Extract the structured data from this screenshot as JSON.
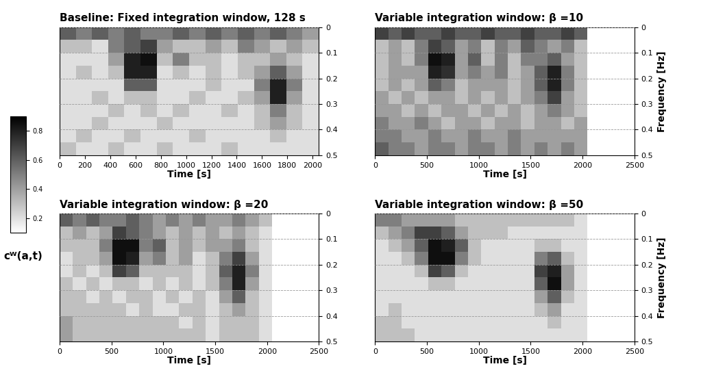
{
  "chart_data": [
    {
      "type": "heatmap",
      "title": "Baseline: Fixed integration window, 128 s",
      "x_label": "Time [s]",
      "xlim": [
        0,
        2050
      ],
      "xticks": [
        0,
        200,
        400,
        600,
        800,
        1000,
        1200,
        1400,
        1600,
        1800,
        2000
      ],
      "ylim": [
        0.5,
        0
      ],
      "yticks": [
        0,
        0.1,
        0.2,
        0.3,
        0.4,
        0.5
      ],
      "grid": true,
      "time_edges": [
        0,
        128,
        256,
        384,
        512,
        640,
        768,
        896,
        1024,
        1152,
        1280,
        1408,
        1536,
        1664,
        1792,
        1920,
        2048
      ],
      "frequency_edges": [
        0,
        0.05,
        0.1,
        0.15,
        0.2,
        0.25,
        0.3,
        0.35,
        0.4,
        0.45,
        0.5
      ],
      "cells": [
        [
          0.6,
          0.5,
          0.6,
          0.5,
          0.6,
          0.5,
          0.5,
          0.6,
          0.5,
          0.6,
          0.5,
          0.6,
          0.5,
          0.6,
          0.5,
          0.4
        ],
        [
          0.3,
          0.3,
          0.2,
          0.5,
          0.6,
          0.7,
          0.4,
          0.3,
          0.3,
          0.4,
          0.3,
          0.5,
          0.4,
          0.3,
          0.4,
          0.3
        ],
        [
          0.2,
          0.2,
          0.2,
          0.4,
          0.8,
          0.85,
          0.3,
          0.5,
          0.3,
          0.3,
          0.2,
          0.3,
          0.3,
          0.4,
          0.3,
          0.2
        ],
        [
          0.2,
          0.3,
          0.2,
          0.3,
          0.8,
          0.8,
          0.2,
          0.3,
          0.2,
          0.3,
          0.2,
          0.3,
          0.4,
          0.6,
          0.4,
          0.2
        ],
        [
          0.2,
          0.2,
          0.2,
          0.2,
          0.6,
          0.6,
          0.2,
          0.2,
          0.2,
          0.3,
          0.2,
          0.2,
          0.5,
          0.8,
          0.5,
          0.2
        ],
        [
          0.2,
          0.2,
          0.3,
          0.2,
          0.3,
          0.3,
          0.2,
          0.2,
          0.3,
          0.2,
          0.2,
          0.3,
          0.4,
          0.8,
          0.4,
          0.2
        ],
        [
          0.2,
          0.2,
          0.2,
          0.3,
          0.2,
          0.3,
          0.2,
          0.3,
          0.2,
          0.2,
          0.3,
          0.2,
          0.3,
          0.5,
          0.3,
          0.2
        ],
        [
          0.2,
          0.2,
          0.3,
          0.2,
          0.2,
          0.2,
          0.3,
          0.2,
          0.2,
          0.2,
          0.2,
          0.2,
          0.3,
          0.4,
          0.3,
          0.2
        ],
        [
          0.2,
          0.3,
          0.2,
          0.2,
          0.3,
          0.2,
          0.2,
          0.2,
          0.3,
          0.2,
          0.2,
          0.2,
          0.2,
          0.3,
          0.2,
          0.2
        ],
        [
          0.3,
          0.2,
          0.2,
          0.3,
          0.2,
          0.2,
          0.3,
          0.2,
          0.2,
          0.2,
          0.3,
          0.2,
          0.2,
          0.2,
          0.2,
          0.2
        ]
      ]
    },
    {
      "type": "heatmap",
      "title": "Variable integration window: β =10",
      "x_label": "Time [s]",
      "y_label": "Frequency [Hz]",
      "xlim": [
        0,
        2500
      ],
      "xticks": [
        0,
        500,
        1000,
        1500,
        2000,
        2500
      ],
      "ylim": [
        0.5,
        0
      ],
      "yticks": [
        0,
        0.1,
        0.2,
        0.3,
        0.4,
        0.5
      ],
      "grid": true,
      "time_edges": [
        0,
        128,
        256,
        384,
        512,
        640,
        768,
        896,
        1024,
        1152,
        1280,
        1408,
        1536,
        1664,
        1792,
        1920,
        2048
      ],
      "frequency_edges": [
        0,
        0.05,
        0.1,
        0.15,
        0.2,
        0.25,
        0.3,
        0.35,
        0.4,
        0.45,
        0.5
      ],
      "cells": [
        [
          0.7,
          0.6,
          0.7,
          0.6,
          0.6,
          0.7,
          0.6,
          0.6,
          0.7,
          0.6,
          0.6,
          0.7,
          0.6,
          0.6,
          0.7,
          0.6
        ],
        [
          0.3,
          0.4,
          0.3,
          0.5,
          0.7,
          0.6,
          0.4,
          0.5,
          0.3,
          0.5,
          0.4,
          0.6,
          0.5,
          0.4,
          0.5,
          0.3
        ],
        [
          0.3,
          0.4,
          0.3,
          0.5,
          0.85,
          0.8,
          0.4,
          0.6,
          0.3,
          0.5,
          0.3,
          0.5,
          0.5,
          0.6,
          0.4,
          0.3
        ],
        [
          0.3,
          0.4,
          0.4,
          0.4,
          0.8,
          0.75,
          0.4,
          0.5,
          0.4,
          0.5,
          0.3,
          0.4,
          0.6,
          0.8,
          0.5,
          0.3
        ],
        [
          0.3,
          0.4,
          0.3,
          0.4,
          0.6,
          0.5,
          0.3,
          0.4,
          0.4,
          0.4,
          0.3,
          0.4,
          0.6,
          0.8,
          0.5,
          0.3
        ],
        [
          0.4,
          0.3,
          0.4,
          0.3,
          0.4,
          0.4,
          0.3,
          0.4,
          0.3,
          0.4,
          0.3,
          0.4,
          0.5,
          0.7,
          0.4,
          0.3
        ],
        [
          0.4,
          0.4,
          0.3,
          0.4,
          0.3,
          0.4,
          0.4,
          0.3,
          0.4,
          0.3,
          0.4,
          0.3,
          0.4,
          0.5,
          0.4,
          0.3
        ],
        [
          0.5,
          0.4,
          0.4,
          0.5,
          0.4,
          0.3,
          0.4,
          0.4,
          0.3,
          0.4,
          0.4,
          0.3,
          0.4,
          0.4,
          0.3,
          0.4
        ],
        [
          0.5,
          0.5,
          0.4,
          0.4,
          0.5,
          0.4,
          0.4,
          0.5,
          0.4,
          0.4,
          0.5,
          0.4,
          0.4,
          0.4,
          0.4,
          0.4
        ],
        [
          0.6,
          0.5,
          0.5,
          0.4,
          0.5,
          0.5,
          0.4,
          0.5,
          0.5,
          0.4,
          0.5,
          0.4,
          0.5,
          0.4,
          0.5,
          0.4
        ]
      ]
    },
    {
      "type": "heatmap",
      "title": "Variable integration window: β =20",
      "x_label": "Time [s]",
      "xlim": [
        0,
        2500
      ],
      "xticks": [
        0,
        500,
        1000,
        1500,
        2000,
        2500
      ],
      "ylim": [
        0.5,
        0
      ],
      "yticks": [
        0,
        0.1,
        0.2,
        0.3,
        0.4,
        0.5
      ],
      "grid": true,
      "time_edges": [
        0,
        128,
        256,
        384,
        512,
        640,
        768,
        896,
        1024,
        1152,
        1280,
        1408,
        1536,
        1664,
        1792,
        1920,
        2048
      ],
      "frequency_edges": [
        0,
        0.05,
        0.1,
        0.15,
        0.2,
        0.25,
        0.3,
        0.35,
        0.4,
        0.45,
        0.5
      ],
      "cells": [
        [
          0.6,
          0.5,
          0.6,
          0.5,
          0.5,
          0.6,
          0.5,
          0.4,
          0.5,
          0.4,
          0.5,
          0.4,
          0.4,
          0.5,
          0.4,
          0.3
        ],
        [
          0.3,
          0.4,
          0.3,
          0.4,
          0.7,
          0.6,
          0.5,
          0.4,
          0.3,
          0.4,
          0.3,
          0.4,
          0.3,
          0.4,
          0.3,
          0.2
        ],
        [
          0.3,
          0.3,
          0.3,
          0.5,
          0.85,
          0.85,
          0.5,
          0.6,
          0.3,
          0.4,
          0.3,
          0.4,
          0.4,
          0.5,
          0.3,
          0.2
        ],
        [
          0.2,
          0.3,
          0.3,
          0.4,
          0.85,
          0.8,
          0.4,
          0.5,
          0.3,
          0.4,
          0.2,
          0.3,
          0.5,
          0.7,
          0.4,
          0.2
        ],
        [
          0.2,
          0.3,
          0.2,
          0.3,
          0.7,
          0.6,
          0.3,
          0.3,
          0.3,
          0.3,
          0.2,
          0.3,
          0.6,
          0.8,
          0.5,
          0.2
        ],
        [
          0.3,
          0.2,
          0.3,
          0.2,
          0.3,
          0.3,
          0.2,
          0.3,
          0.2,
          0.3,
          0.2,
          0.3,
          0.5,
          0.8,
          0.4,
          0.2
        ],
        [
          0.3,
          0.3,
          0.2,
          0.3,
          0.2,
          0.3,
          0.3,
          0.2,
          0.3,
          0.2,
          0.3,
          0.2,
          0.4,
          0.6,
          0.3,
          0.2
        ],
        [
          0.3,
          0.3,
          0.3,
          0.3,
          0.3,
          0.2,
          0.3,
          0.2,
          0.2,
          0.3,
          0.3,
          0.2,
          0.3,
          0.4,
          0.3,
          0.2
        ],
        [
          0.4,
          0.3,
          0.3,
          0.3,
          0.3,
          0.3,
          0.3,
          0.3,
          0.3,
          0.2,
          0.3,
          0.2,
          0.3,
          0.3,
          0.3,
          0.2
        ],
        [
          0.4,
          0.3,
          0.3,
          0.3,
          0.3,
          0.3,
          0.3,
          0.3,
          0.3,
          0.3,
          0.3,
          0.2,
          0.3,
          0.3,
          0.3,
          0.2
        ]
      ]
    },
    {
      "type": "heatmap",
      "title": "Variable integration window: β =50",
      "x_label": "Time [s]",
      "y_label": "Frequency [Hz]",
      "xlim": [
        0,
        2500
      ],
      "xticks": [
        0,
        500,
        1000,
        1500,
        2000,
        2500
      ],
      "ylim": [
        0.5,
        0
      ],
      "yticks": [
        0,
        0.1,
        0.2,
        0.3,
        0.4,
        0.5
      ],
      "grid": true,
      "time_edges": [
        0,
        128,
        256,
        384,
        512,
        640,
        768,
        896,
        1024,
        1152,
        1280,
        1408,
        1536,
        1664,
        1792,
        1920,
        2048
      ],
      "frequency_edges": [
        0,
        0.05,
        0.1,
        0.15,
        0.2,
        0.25,
        0.3,
        0.35,
        0.4,
        0.45,
        0.5
      ],
      "cells": [
        [
          0.5,
          0.5,
          0.4,
          0.4,
          0.4,
          0.4,
          0.3,
          0.3,
          0.3,
          0.3,
          0.3,
          0.3,
          0.3,
          0.3,
          0.3,
          0.2
        ],
        [
          0.3,
          0.4,
          0.5,
          0.7,
          0.7,
          0.6,
          0.4,
          0.3,
          0.3,
          0.3,
          0.2,
          0.2,
          0.2,
          0.2,
          0.2,
          0.2
        ],
        [
          0.2,
          0.3,
          0.4,
          0.6,
          0.85,
          0.8,
          0.6,
          0.3,
          0.2,
          0.2,
          0.2,
          0.2,
          0.3,
          0.3,
          0.2,
          0.2
        ],
        [
          0.2,
          0.2,
          0.3,
          0.5,
          0.85,
          0.85,
          0.5,
          0.3,
          0.2,
          0.2,
          0.2,
          0.2,
          0.5,
          0.6,
          0.3,
          0.2
        ],
        [
          0.2,
          0.2,
          0.2,
          0.3,
          0.7,
          0.6,
          0.3,
          0.2,
          0.2,
          0.2,
          0.2,
          0.2,
          0.7,
          0.8,
          0.4,
          0.2
        ],
        [
          0.2,
          0.2,
          0.2,
          0.2,
          0.3,
          0.3,
          0.2,
          0.2,
          0.2,
          0.2,
          0.2,
          0.2,
          0.6,
          0.85,
          0.4,
          0.2
        ],
        [
          0.2,
          0.2,
          0.2,
          0.2,
          0.2,
          0.2,
          0.2,
          0.2,
          0.2,
          0.2,
          0.2,
          0.2,
          0.4,
          0.6,
          0.3,
          0.2
        ],
        [
          0.2,
          0.3,
          0.2,
          0.2,
          0.2,
          0.2,
          0.2,
          0.2,
          0.2,
          0.2,
          0.2,
          0.2,
          0.3,
          0.4,
          0.2,
          0.2
        ],
        [
          0.3,
          0.3,
          0.2,
          0.2,
          0.2,
          0.2,
          0.2,
          0.2,
          0.2,
          0.2,
          0.2,
          0.2,
          0.2,
          0.3,
          0.2,
          0.2
        ],
        [
          0.3,
          0.3,
          0.3,
          0.2,
          0.2,
          0.2,
          0.2,
          0.2,
          0.2,
          0.2,
          0.2,
          0.2,
          0.2,
          0.2,
          0.2,
          0.2
        ]
      ]
    }
  ],
  "colorbar": {
    "label": "cᵂ(a,t)",
    "range": [
      0.1,
      0.9
    ],
    "ticks": [
      0.2,
      0.4,
      0.6,
      0.8
    ]
  }
}
